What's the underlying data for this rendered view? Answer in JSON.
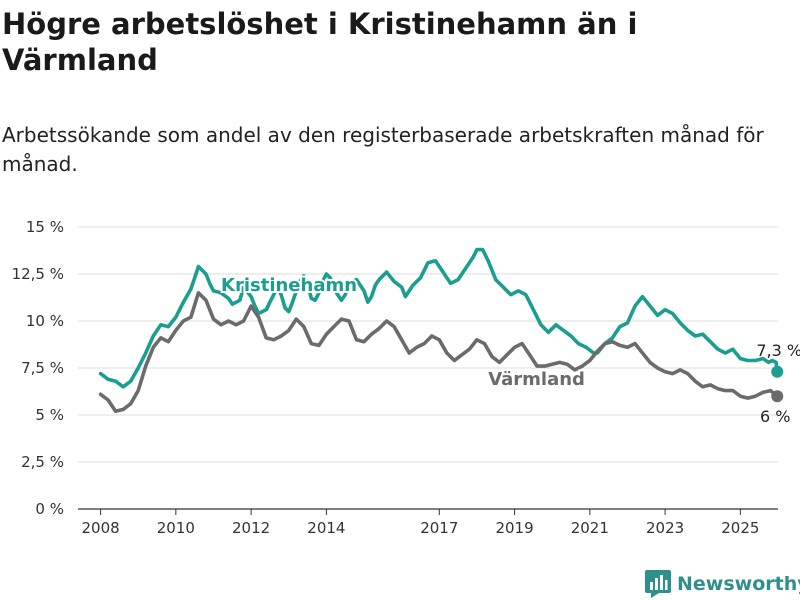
{
  "header": {
    "title": "Högre arbetslöshet i Kristinehamn än i Värmland",
    "subtitle": "Arbetssökande som andel av den registerbaserade arbetskraften månad för månad."
  },
  "footer": {
    "brand": "Newsworthy"
  },
  "colors": {
    "kristinehamn": "#1a9e8f",
    "varmland": "#6b6b6b",
    "grid": "#dddddd",
    "axis": "#333333"
  },
  "chart_data": {
    "type": "line",
    "xlim": [
      2007.4,
      2026.0
    ],
    "ylim": [
      0,
      15
    ],
    "y_ticks": [
      {
        "value": 0,
        "label": "0 %"
      },
      {
        "value": 2.5,
        "label": "2,5 %"
      },
      {
        "value": 5,
        "label": "5 %"
      },
      {
        "value": 7.5,
        "label": "7,5 %"
      },
      {
        "value": 10,
        "label": "10 %"
      },
      {
        "value": 12.5,
        "label": "12,5 %"
      },
      {
        "value": 15,
        "label": "15 %"
      }
    ],
    "x_ticks": [
      {
        "value": 2008,
        "label": "2008"
      },
      {
        "value": 2010,
        "label": "2010"
      },
      {
        "value": 2012,
        "label": "2012"
      },
      {
        "value": 2014,
        "label": "2014"
      },
      {
        "value": 2017,
        "label": "2017"
      },
      {
        "value": 2019,
        "label": "2019"
      },
      {
        "value": 2021,
        "label": "2021"
      },
      {
        "value": 2023,
        "label": "2023"
      },
      {
        "value": 2025,
        "label": "2025"
      }
    ],
    "series": [
      {
        "name": "Kristinehamn",
        "color": "#1a9e8f",
        "end_label": "7,3 %",
        "points": [
          [
            2008.0,
            7.2
          ],
          [
            2008.2,
            6.9
          ],
          [
            2008.4,
            6.8
          ],
          [
            2008.6,
            6.5
          ],
          [
            2008.8,
            6.8
          ],
          [
            2009.0,
            7.5
          ],
          [
            2009.2,
            8.3
          ],
          [
            2009.4,
            9.2
          ],
          [
            2009.6,
            9.8
          ],
          [
            2009.8,
            9.7
          ],
          [
            2010.0,
            10.2
          ],
          [
            2010.2,
            11.0
          ],
          [
            2010.4,
            11.7
          ],
          [
            2010.5,
            12.3
          ],
          [
            2010.6,
            12.9
          ],
          [
            2010.8,
            12.5
          ],
          [
            2010.9,
            12.0
          ],
          [
            2011.0,
            11.6
          ],
          [
            2011.2,
            11.5
          ],
          [
            2011.4,
            11.2
          ],
          [
            2011.5,
            10.9
          ],
          [
            2011.7,
            11.1
          ],
          [
            2011.8,
            11.8
          ],
          [
            2012.0,
            11.3
          ],
          [
            2012.1,
            10.8
          ],
          [
            2012.2,
            10.4
          ],
          [
            2012.4,
            10.6
          ],
          [
            2012.5,
            11.0
          ],
          [
            2012.6,
            11.4
          ],
          [
            2012.7,
            11.8
          ],
          [
            2012.8,
            11.4
          ],
          [
            2012.9,
            10.7
          ],
          [
            2013.0,
            10.5
          ],
          [
            2013.1,
            11.0
          ],
          [
            2013.2,
            11.6
          ],
          [
            2013.3,
            12.1
          ],
          [
            2013.4,
            12.4
          ],
          [
            2013.5,
            12.0
          ],
          [
            2013.6,
            11.2
          ],
          [
            2013.7,
            11.1
          ],
          [
            2013.8,
            11.5
          ],
          [
            2013.9,
            12.1
          ],
          [
            2014.0,
            12.5
          ],
          [
            2014.1,
            12.3
          ],
          [
            2014.2,
            11.7
          ],
          [
            2014.4,
            11.1
          ],
          [
            2014.5,
            11.4
          ],
          [
            2014.6,
            12.0
          ],
          [
            2014.8,
            12.2
          ],
          [
            2015.0,
            11.6
          ],
          [
            2015.1,
            11.0
          ],
          [
            2015.2,
            11.3
          ],
          [
            2015.3,
            11.9
          ],
          [
            2015.4,
            12.2
          ],
          [
            2015.6,
            12.6
          ],
          [
            2015.8,
            12.1
          ],
          [
            2016.0,
            11.8
          ],
          [
            2016.1,
            11.3
          ],
          [
            2016.3,
            11.9
          ],
          [
            2016.5,
            12.3
          ],
          [
            2016.7,
            13.1
          ],
          [
            2016.9,
            13.2
          ],
          [
            2017.1,
            12.6
          ],
          [
            2017.3,
            12.0
          ],
          [
            2017.5,
            12.2
          ],
          [
            2017.7,
            12.8
          ],
          [
            2017.9,
            13.4
          ],
          [
            2018.0,
            13.8
          ],
          [
            2018.15,
            13.8
          ],
          [
            2018.3,
            13.2
          ],
          [
            2018.5,
            12.2
          ],
          [
            2018.7,
            11.8
          ],
          [
            2018.9,
            11.4
          ],
          [
            2019.1,
            11.6
          ],
          [
            2019.3,
            11.4
          ],
          [
            2019.5,
            10.6
          ],
          [
            2019.7,
            9.8
          ],
          [
            2019.9,
            9.4
          ],
          [
            2020.1,
            9.8
          ],
          [
            2020.3,
            9.5
          ],
          [
            2020.5,
            9.2
          ],
          [
            2020.7,
            8.8
          ],
          [
            2020.9,
            8.6
          ],
          [
            2021.1,
            8.3
          ],
          [
            2021.2,
            8.3
          ],
          [
            2021.4,
            8.8
          ],
          [
            2021.6,
            9.1
          ],
          [
            2021.8,
            9.7
          ],
          [
            2022.0,
            9.9
          ],
          [
            2022.2,
            10.8
          ],
          [
            2022.4,
            11.3
          ],
          [
            2022.6,
            10.8
          ],
          [
            2022.8,
            10.3
          ],
          [
            2023.0,
            10.6
          ],
          [
            2023.2,
            10.4
          ],
          [
            2023.4,
            9.9
          ],
          [
            2023.6,
            9.5
          ],
          [
            2023.8,
            9.2
          ],
          [
            2024.0,
            9.3
          ],
          [
            2024.2,
            8.9
          ],
          [
            2024.4,
            8.5
          ],
          [
            2024.6,
            8.3
          ],
          [
            2024.8,
            8.5
          ],
          [
            2025.0,
            8.0
          ],
          [
            2025.2,
            7.9
          ],
          [
            2025.4,
            7.9
          ],
          [
            2025.6,
            8.0
          ],
          [
            2025.75,
            7.8
          ],
          [
            2025.85,
            7.9
          ],
          [
            2025.95,
            7.8
          ],
          [
            2025.98,
            7.3
          ]
        ]
      },
      {
        "name": "Värmland",
        "color": "#6b6b6b",
        "end_label": "6 %",
        "points": [
          [
            2008.0,
            6.1
          ],
          [
            2008.2,
            5.8
          ],
          [
            2008.4,
            5.2
          ],
          [
            2008.6,
            5.3
          ],
          [
            2008.8,
            5.6
          ],
          [
            2009.0,
            6.3
          ],
          [
            2009.2,
            7.6
          ],
          [
            2009.4,
            8.6
          ],
          [
            2009.6,
            9.1
          ],
          [
            2009.8,
            8.9
          ],
          [
            2010.0,
            9.5
          ],
          [
            2010.2,
            10.0
          ],
          [
            2010.4,
            10.2
          ],
          [
            2010.6,
            11.5
          ],
          [
            2010.8,
            11.1
          ],
          [
            2011.0,
            10.1
          ],
          [
            2011.2,
            9.8
          ],
          [
            2011.4,
            10.0
          ],
          [
            2011.6,
            9.8
          ],
          [
            2011.8,
            10.0
          ],
          [
            2012.0,
            10.8
          ],
          [
            2012.2,
            10.2
          ],
          [
            2012.4,
            9.1
          ],
          [
            2012.6,
            9.0
          ],
          [
            2012.8,
            9.2
          ],
          [
            2013.0,
            9.5
          ],
          [
            2013.2,
            10.1
          ],
          [
            2013.4,
            9.7
          ],
          [
            2013.6,
            8.8
          ],
          [
            2013.8,
            8.7
          ],
          [
            2014.0,
            9.3
          ],
          [
            2014.2,
            9.7
          ],
          [
            2014.4,
            10.1
          ],
          [
            2014.6,
            10.0
          ],
          [
            2014.8,
            9.0
          ],
          [
            2015.0,
            8.9
          ],
          [
            2015.2,
            9.3
          ],
          [
            2015.4,
            9.6
          ],
          [
            2015.6,
            10.0
          ],
          [
            2015.8,
            9.7
          ],
          [
            2016.0,
            9.0
          ],
          [
            2016.2,
            8.3
          ],
          [
            2016.4,
            8.6
          ],
          [
            2016.6,
            8.8
          ],
          [
            2016.8,
            9.2
          ],
          [
            2017.0,
            9.0
          ],
          [
            2017.2,
            8.3
          ],
          [
            2017.4,
            7.9
          ],
          [
            2017.6,
            8.2
          ],
          [
            2017.8,
            8.5
          ],
          [
            2018.0,
            9.0
          ],
          [
            2018.2,
            8.8
          ],
          [
            2018.4,
            8.1
          ],
          [
            2018.6,
            7.8
          ],
          [
            2018.8,
            8.2
          ],
          [
            2019.0,
            8.6
          ],
          [
            2019.2,
            8.8
          ],
          [
            2019.4,
            8.2
          ],
          [
            2019.6,
            7.6
          ],
          [
            2019.8,
            7.6
          ],
          [
            2020.0,
            7.7
          ],
          [
            2020.2,
            7.8
          ],
          [
            2020.4,
            7.7
          ],
          [
            2020.6,
            7.4
          ],
          [
            2020.8,
            7.6
          ],
          [
            2021.0,
            7.9
          ],
          [
            2021.2,
            8.4
          ],
          [
            2021.4,
            8.8
          ],
          [
            2021.6,
            8.9
          ],
          [
            2021.8,
            8.7
          ],
          [
            2022.0,
            8.6
          ],
          [
            2022.2,
            8.8
          ],
          [
            2022.4,
            8.3
          ],
          [
            2022.6,
            7.8
          ],
          [
            2022.8,
            7.5
          ],
          [
            2023.0,
            7.3
          ],
          [
            2023.2,
            7.2
          ],
          [
            2023.4,
            7.4
          ],
          [
            2023.6,
            7.2
          ],
          [
            2023.8,
            6.8
          ],
          [
            2024.0,
            6.5
          ],
          [
            2024.2,
            6.6
          ],
          [
            2024.4,
            6.4
          ],
          [
            2024.6,
            6.3
          ],
          [
            2024.8,
            6.3
          ],
          [
            2025.0,
            6.0
          ],
          [
            2025.2,
            5.9
          ],
          [
            2025.4,
            6.0
          ],
          [
            2025.6,
            6.2
          ],
          [
            2025.8,
            6.3
          ],
          [
            2025.98,
            6.0
          ]
        ]
      }
    ]
  }
}
